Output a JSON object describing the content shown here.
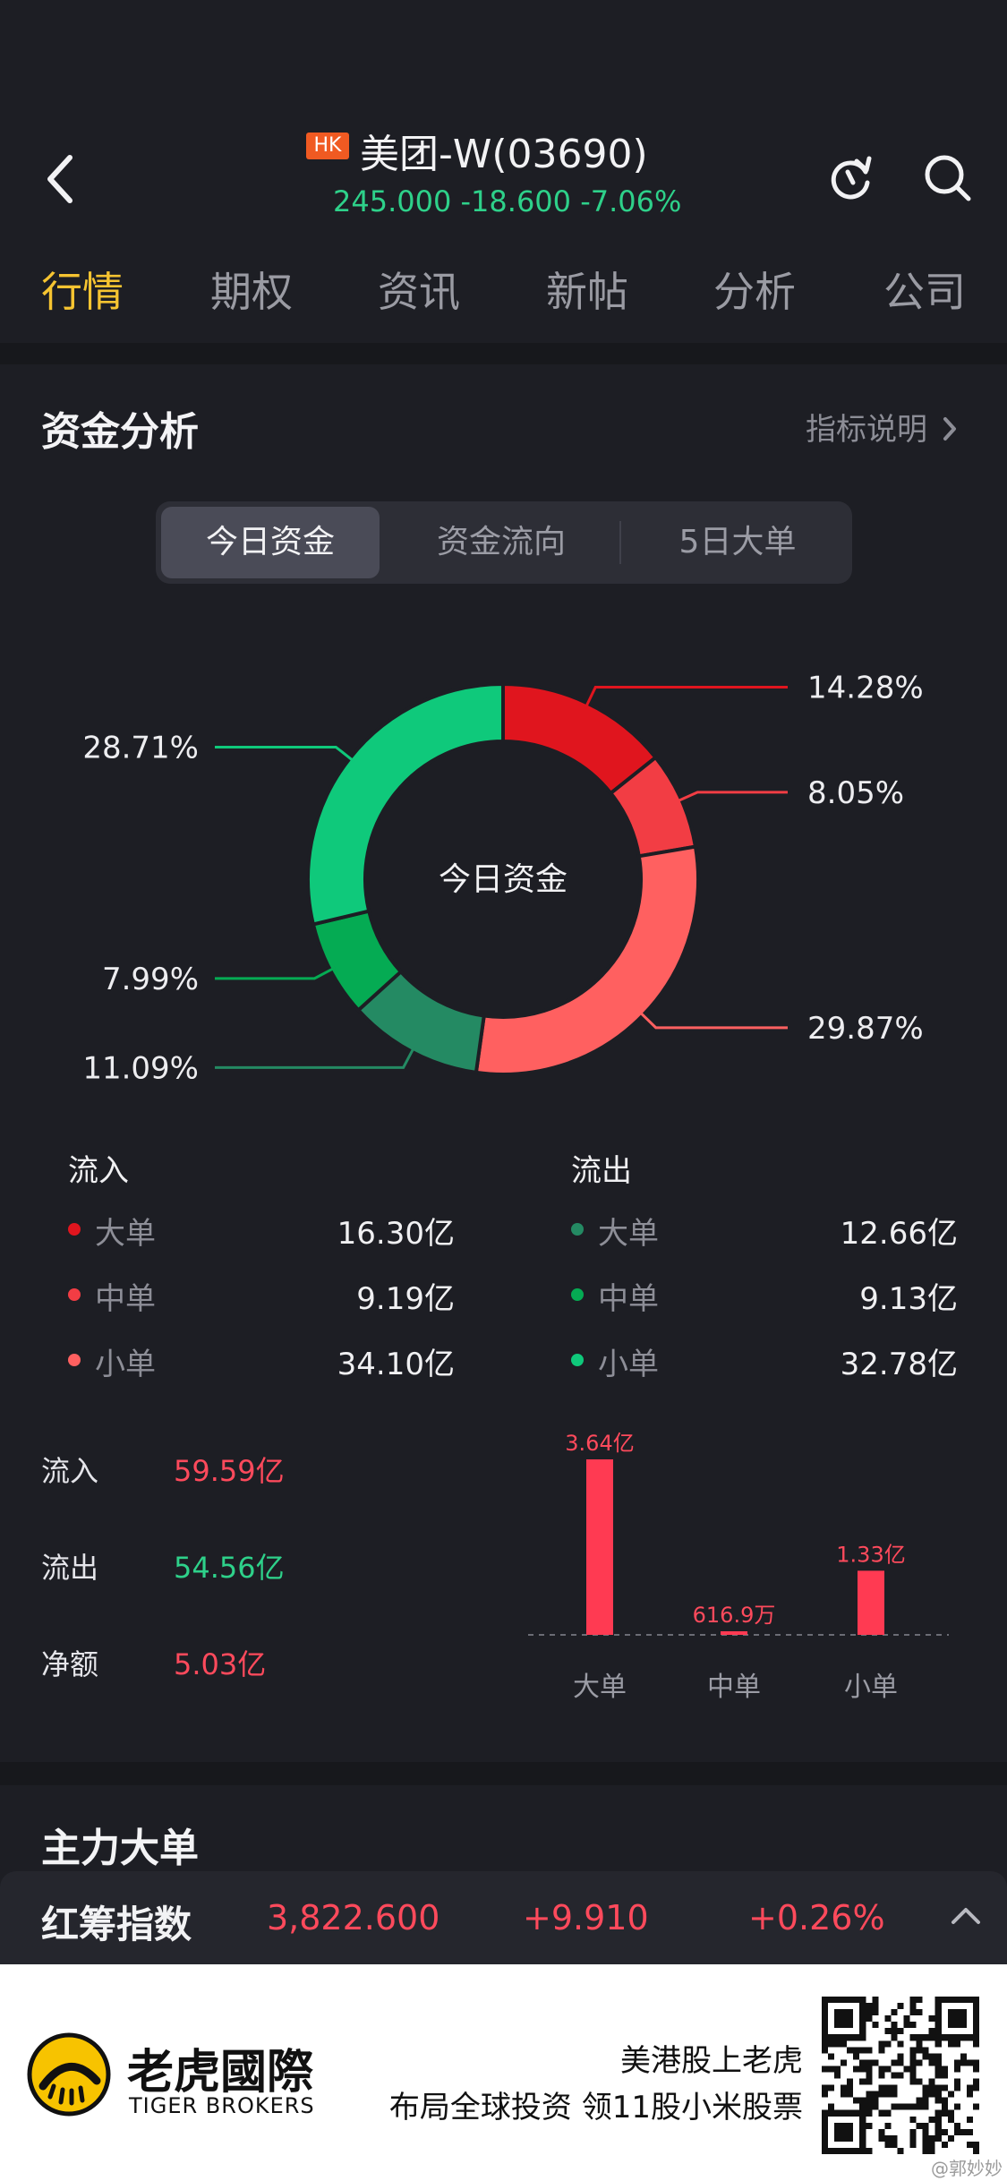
{
  "header": {
    "market_badge": "HK",
    "stock_title": "美团-W(03690)",
    "quote": "245.000 -18.600 -7.06%"
  },
  "tabs": [
    {
      "label": "行情",
      "active": true
    },
    {
      "label": "期权"
    },
    {
      "label": "资讯"
    },
    {
      "label": "新帖"
    },
    {
      "label": "分析"
    },
    {
      "label": "公司"
    }
  ],
  "capital": {
    "title": "资金分析",
    "help_link": "指标说明",
    "segments": [
      "今日资金",
      "资金流向",
      "5日大单"
    ],
    "donut_center": "今日资金"
  },
  "chart_data": [
    {
      "type": "pie",
      "title": "今日资金",
      "slices": [
        {
          "label": "流入大单",
          "value": 14.28,
          "display": "14.28%",
          "color": "#e0151e"
        },
        {
          "label": "流入中单",
          "value": 8.05,
          "display": "8.05%",
          "color": "#f23d44"
        },
        {
          "label": "流入小单",
          "value": 29.87,
          "display": "29.87%",
          "color": "#ff6060"
        },
        {
          "label": "流出大单",
          "value": 11.09,
          "display": "11.09%",
          "color": "#248a63"
        },
        {
          "label": "流出中单",
          "value": 7.99,
          "display": "7.99%",
          "color": "#05ab53"
        },
        {
          "label": "流出小单",
          "value": 28.71,
          "display": "28.71%",
          "color": "#0fc97b"
        }
      ]
    },
    {
      "type": "bar",
      "categories": [
        "大单",
        "中单",
        "小单"
      ],
      "values": [
        36400,
        616.9,
        13300
      ],
      "value_unit": "万",
      "data_labels": [
        "3.64亿",
        "616.9万",
        "1.33亿"
      ],
      "color": "#ff3a52"
    }
  ],
  "inflow": {
    "heading": "流入",
    "rows": [
      {
        "label": "大单",
        "value": "16.30亿",
        "color": "#e0151e"
      },
      {
        "label": "中单",
        "value": "9.19亿",
        "color": "#f23d44"
      },
      {
        "label": "小单",
        "value": "34.10亿",
        "color": "#ff6060"
      }
    ]
  },
  "outflow": {
    "heading": "流出",
    "rows": [
      {
        "label": "大单",
        "value": "12.66亿",
        "color": "#248a63"
      },
      {
        "label": "中单",
        "value": "9.13亿",
        "color": "#05ab53"
      },
      {
        "label": "小单",
        "value": "32.78亿",
        "color": "#0fc97b"
      }
    ]
  },
  "summary": [
    {
      "label": "流入",
      "value": "59.59亿",
      "color": "#ff4a5c"
    },
    {
      "label": "流出",
      "value": "54.56亿",
      "color": "#2ed18a"
    },
    {
      "label": "净额",
      "value": "5.03亿",
      "color": "#ff4a5c"
    }
  ],
  "main_orders": {
    "title": "主力大单"
  },
  "ticker": {
    "name": "红筹指数",
    "price": "3,822.600",
    "change": "+9.910",
    "change_pct": "+0.26%"
  },
  "banner": {
    "brand_cn": "老虎國際",
    "brand_en": "TIGER BROKERS",
    "slogan_line1": "美港股上老虎",
    "slogan_line2": "布局全球投资 领11股小米股票",
    "watermark": "@郭妙妙"
  },
  "icons": [
    "back-arrow-icon",
    "refresh-icon",
    "search-icon",
    "chevron-right-icon",
    "chevron-up-icon",
    "tiger-logo-icon",
    "qr-code-icon"
  ]
}
